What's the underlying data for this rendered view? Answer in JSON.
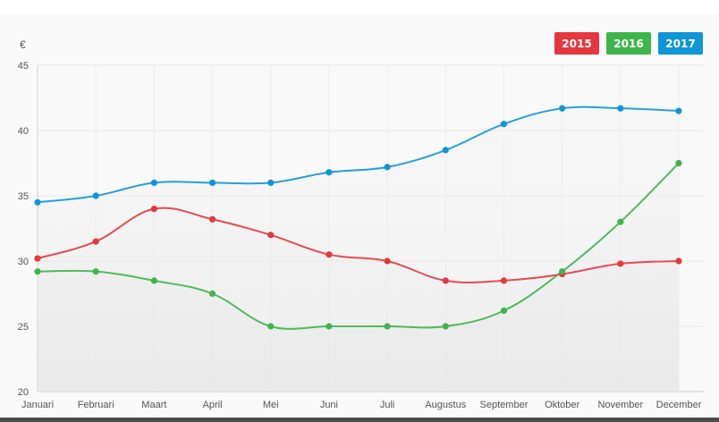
{
  "chart_data": {
    "type": "line",
    "unit": "€",
    "categories": [
      "Januari",
      "Februari",
      "Maart",
      "April",
      "Mei",
      "Juni",
      "Juli",
      "Augustus",
      "September",
      "Oktober",
      "November",
      "December"
    ],
    "ylim": [
      20,
      45
    ],
    "yticks": [
      "20",
      "25",
      "30",
      "35",
      "40",
      "45"
    ],
    "grid": true,
    "legend_position": "top-right",
    "series": [
      {
        "name": "2015",
        "color": "#e5373f",
        "values": [
          30.2,
          31.5,
          34.0,
          33.2,
          32.0,
          30.5,
          30.0,
          28.5,
          28.5,
          29.0,
          29.8,
          30.0
        ]
      },
      {
        "name": "2016",
        "color": "#3db54a",
        "values": [
          29.2,
          29.2,
          28.5,
          27.5,
          25.0,
          25.0,
          25.0,
          25.0,
          26.2,
          29.2,
          33.0,
          37.5
        ]
      },
      {
        "name": "2017",
        "color": "#0f96d6",
        "values": [
          34.5,
          35.0,
          36.0,
          36.0,
          36.0,
          36.8,
          37.2,
          38.5,
          40.5,
          41.7,
          41.7,
          41.5
        ]
      }
    ]
  }
}
